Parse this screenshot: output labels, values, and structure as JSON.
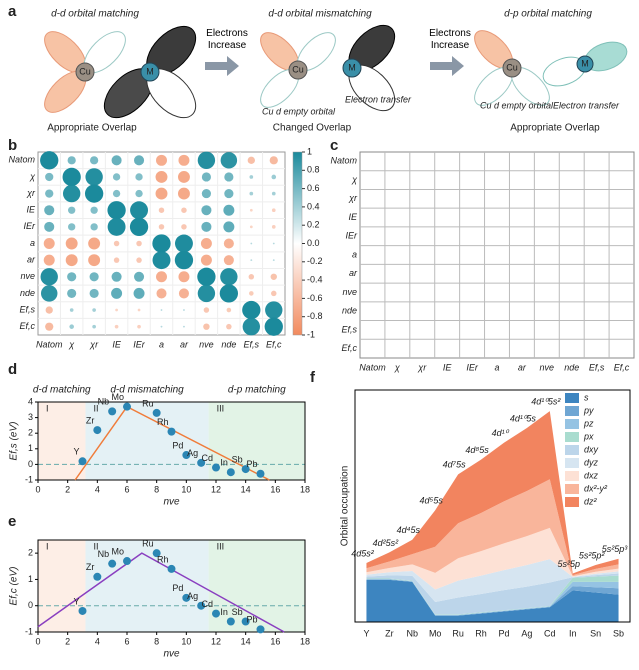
{
  "diagram": {
    "label": "a",
    "left": {
      "title": "d-d orbital matching",
      "cu": "Cu",
      "m": "M",
      "caption": "Appropriate Overlap"
    },
    "arrow1": "Electrons Increase",
    "middle": {
      "title": "d-d orbital mismatching",
      "cu": "Cu",
      "m": "M",
      "empty": "Cu d empty orbital",
      "transfer": "Electron transfer",
      "caption": "Changed Overlap"
    },
    "arrow2": "Electrons Increase",
    "right": {
      "title": "d-p orbital matching",
      "cu": "Cu",
      "m": "M",
      "empty": "Cu d empty orbital",
      "transfer": "Electron transfer",
      "caption": "Appropriate Overlap"
    }
  },
  "chart_data": [
    {
      "type": "correlation",
      "panel": "b",
      "variables": [
        "Natom",
        "χ",
        "χr",
        "IE",
        "IEr",
        "a",
        "ar",
        "nve",
        "nde",
        "Ef,s",
        "Ef,c"
      ],
      "values": [
        [
          1,
          0.45,
          0.45,
          0.55,
          0.55,
          -0.6,
          -0.6,
          0.95,
          0.9,
          -0.4,
          -0.45
        ],
        [
          0.45,
          1,
          0.95,
          0.4,
          0.4,
          -0.65,
          -0.65,
          0.5,
          0.5,
          0.2,
          0.25
        ],
        [
          0.45,
          0.95,
          1,
          0.4,
          0.4,
          -0.65,
          -0.65,
          0.5,
          0.5,
          0.2,
          0.2
        ],
        [
          0.55,
          0.4,
          0.4,
          1,
          0.98,
          -0.3,
          -0.3,
          0.55,
          0.6,
          -0.15,
          -0.2
        ],
        [
          0.55,
          0.4,
          0.4,
          0.98,
          1,
          -0.3,
          -0.3,
          0.55,
          0.6,
          -0.15,
          -0.2
        ],
        [
          -0.6,
          -0.65,
          -0.65,
          -0.3,
          -0.3,
          1,
          0.98,
          -0.6,
          -0.55,
          0.1,
          0.1
        ],
        [
          -0.6,
          -0.65,
          -0.65,
          -0.3,
          -0.3,
          0.98,
          1,
          -0.6,
          -0.55,
          0.1,
          0.1
        ],
        [
          0.95,
          0.5,
          0.5,
          0.55,
          0.55,
          -0.6,
          -0.6,
          1,
          0.95,
          -0.3,
          -0.35
        ],
        [
          0.9,
          0.5,
          0.5,
          0.6,
          0.6,
          -0.55,
          -0.55,
          0.95,
          1,
          -0.25,
          -0.3
        ],
        [
          -0.4,
          0.2,
          0.2,
          -0.15,
          -0.15,
          0.1,
          0.1,
          -0.3,
          -0.25,
          1,
          0.95
        ],
        [
          -0.45,
          0.25,
          0.2,
          -0.2,
          -0.2,
          0.1,
          0.1,
          -0.35,
          -0.3,
          0.95,
          1
        ]
      ],
      "colors": {
        "positive": "#1b8a9c",
        "negative": "#f28a5e"
      },
      "clim": [
        -1,
        1
      ],
      "colorbar_ticks": [
        1,
        0.8,
        0.6,
        0.4,
        0.2,
        {
          "value": 0,
          "label": "0.0"
        },
        -0.2,
        -0.4,
        -0.6,
        -0.8,
        -1
      ]
    },
    {
      "type": "scatter_matrix",
      "panel": "c",
      "variables": [
        "Natom",
        "χ",
        "χr",
        "IE",
        "IEr",
        "a",
        "ar",
        "nve",
        "nde",
        "Ef,s",
        "Ef,c"
      ]
    },
    {
      "type": "scatter",
      "panel": "d",
      "xlabel": "nve",
      "ylabel": "Ef,s (eV)",
      "xlim": [
        0,
        18
      ],
      "ylim": [
        -1,
        4
      ],
      "xticks": [
        0,
        2,
        4,
        6,
        8,
        10,
        12,
        14,
        16,
        18
      ],
      "yticks": [
        -1,
        0,
        1,
        2,
        3,
        4
      ],
      "regions": [
        {
          "label": "I",
          "title": "d-d matching",
          "xlim": [
            0,
            3.2
          ],
          "color": "#fdeee6"
        },
        {
          "label": "II",
          "title": "d-d mismatching",
          "xlim": [
            3.2,
            11.5
          ],
          "color": "#e4f1f5"
        },
        {
          "label": "III",
          "title": "d-p matching",
          "xlim": [
            11.5,
            18
          ],
          "color": "#e2f3e6"
        }
      ],
      "hline": 0,
      "color": "#2b86b4",
      "points": {
        "labels": [
          "Y",
          "Zr",
          "Nb",
          "Mo",
          "Ru",
          "Rh",
          "Pd",
          "Ag",
          "Cd",
          "In",
          "Sb",
          "Pb"
        ],
        "x": [
          3,
          4,
          5,
          6,
          8,
          9,
          10,
          11,
          12,
          13,
          14,
          15
        ],
        "values": [
          0.2,
          2.2,
          3.4,
          3.7,
          3.3,
          2.1,
          0.6,
          0.1,
          -0.2,
          -0.5,
          -0.3,
          -0.6
        ]
      },
      "fit": {
        "x": [
          2.5,
          6,
          15.6
        ],
        "values": [
          -1,
          3.7,
          -1
        ],
        "color": "#f07c3a"
      }
    },
    {
      "type": "scatter",
      "panel": "e",
      "xlabel": "nve",
      "ylabel": "Ef,c (eV)",
      "xlim": [
        0,
        18
      ],
      "ylim": [
        -1,
        2.5
      ],
      "xticks": [
        0,
        2,
        4,
        6,
        8,
        10,
        12,
        14,
        16,
        18
      ],
      "yticks": [
        -1,
        0,
        1,
        2
      ],
      "regions": [
        {
          "label": "I",
          "xlim": [
            0,
            3.2
          ],
          "color": "#fdeee6"
        },
        {
          "label": "II",
          "xlim": [
            3.2,
            11.5
          ],
          "color": "#e4f1f5"
        },
        {
          "label": "III",
          "xlim": [
            11.5,
            18
          ],
          "color": "#e2f3e6"
        }
      ],
      "hline": 0,
      "color": "#2b86b4",
      "points": {
        "labels": [
          "Y",
          "Zr",
          "Nb",
          "Mo",
          "Ru",
          "Rh",
          "Pd",
          "Ag",
          "Cd",
          "In",
          "Sb",
          "Pb"
        ],
        "x": [
          3,
          4,
          5,
          6,
          8,
          9,
          10,
          11,
          12,
          13,
          14,
          15
        ],
        "values": [
          -0.2,
          1.1,
          1.6,
          1.7,
          2.0,
          1.4,
          0.3,
          0.0,
          -0.3,
          -0.6,
          -0.6,
          -0.9
        ]
      },
      "fit": {
        "x": [
          0,
          7,
          16.6
        ],
        "values": [
          -0.8,
          2,
          -1
        ],
        "color": "#8a3fc0"
      }
    },
    {
      "type": "area",
      "panel": "f",
      "ylabel": "Orbital occupation",
      "ylim": [
        0,
        11
      ],
      "categories": [
        "Y",
        "Zr",
        "Nb",
        "Mo",
        "Ru",
        "Rh",
        "Pd",
        "Ag",
        "Cd",
        "In",
        "Sn",
        "Sb"
      ],
      "annotations": [
        "4d5s²",
        "4d²5s²",
        "4d⁴5s",
        "4d⁵5s",
        "4d⁷5s",
        "4d⁸5s",
        "4d¹⁰",
        "4d¹⁰5s",
        "4d¹⁰5s²",
        "5s²5p",
        "5s²5p²",
        "5s²5p³"
      ],
      "series": [
        {
          "name": "s",
          "color": "#3d85c0",
          "values": [
            2.0,
            2.0,
            1.9,
            0.3,
            0.3,
            0.4,
            0.5,
            0.6,
            0.7,
            1.5,
            1.4,
            1.3
          ]
        },
        {
          "name": "py",
          "color": "#6fa6d3",
          "values": [
            0.02,
            0.02,
            0.02,
            0.02,
            0.02,
            0.02,
            0.02,
            0.02,
            0.02,
            0.2,
            0.25,
            0.3
          ]
        },
        {
          "name": "pz",
          "color": "#95c3e3",
          "values": [
            0.02,
            0.02,
            0.02,
            0.02,
            0.02,
            0.02,
            0.02,
            0.02,
            0.02,
            0.2,
            0.25,
            0.3
          ]
        },
        {
          "name": "px",
          "color": "#a9dccf",
          "values": [
            0.02,
            0.02,
            0.02,
            0.02,
            0.02,
            0.02,
            0.02,
            0.02,
            0.02,
            0.2,
            0.25,
            0.3
          ]
        },
        {
          "name": "dxy",
          "color": "#bcd5ea",
          "values": [
            0.09,
            0.15,
            0.23,
            0.59,
            0.8,
            0.87,
            0.95,
            1.02,
            1.11,
            0.02,
            0.07,
            0.1
          ]
        },
        {
          "name": "dyz",
          "color": "#d6e5f1",
          "values": [
            0.09,
            0.15,
            0.23,
            0.59,
            0.8,
            0.87,
            0.95,
            1.02,
            1.11,
            0.02,
            0.07,
            0.1
          ]
        },
        {
          "name": "dxz",
          "color": "#fde1d5",
          "values": [
            0.12,
            0.2,
            0.31,
            0.79,
            1.06,
            1.16,
            1.27,
            1.37,
            1.48,
            0.03,
            0.09,
            0.13
          ]
        },
        {
          "name": "dx²-y²",
          "color": "#f9b59b",
          "values": [
            0.19,
            0.31,
            0.49,
            1.24,
            1.66,
            1.81,
            1.99,
            2.14,
            2.31,
            0.05,
            0.14,
            0.2
          ]
        },
        {
          "name": "dz²",
          "color": "#f2845f",
          "values": [
            0.25,
            0.43,
            0.68,
            1.73,
            2.32,
            2.53,
            2.78,
            2.99,
            3.23,
            0.08,
            0.18,
            0.27
          ]
        }
      ]
    }
  ]
}
